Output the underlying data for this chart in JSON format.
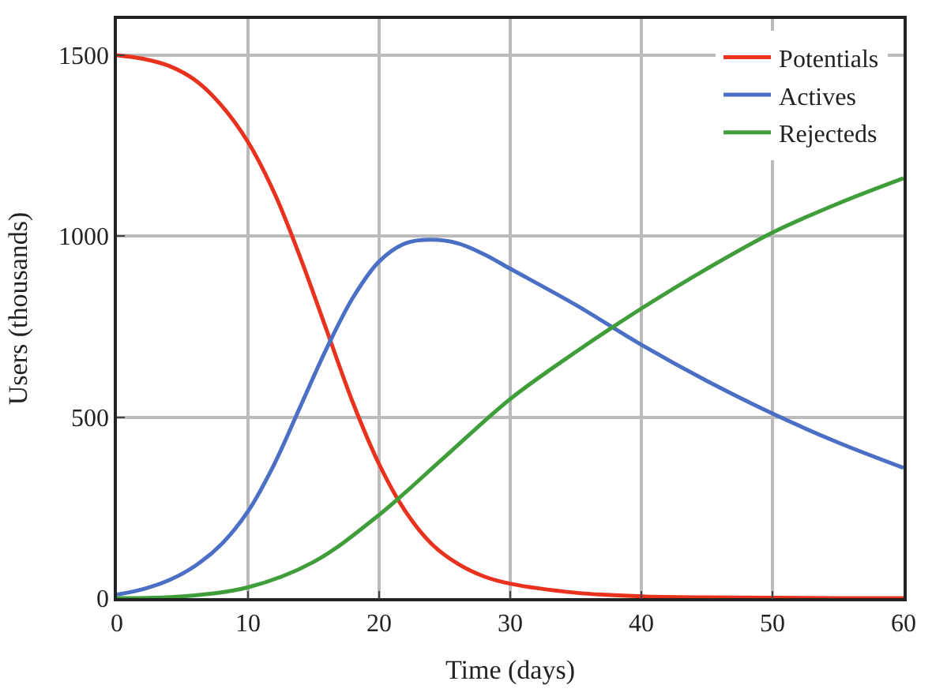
{
  "chart_data": {
    "type": "line",
    "xlabel": "Time (days)",
    "ylabel": "Users (thousands)",
    "xlim": [
      0,
      60
    ],
    "xticks": [
      0,
      10,
      20,
      30,
      40,
      50,
      60
    ],
    "ylim": [
      0,
      1600
    ],
    "yticks": [
      0,
      500,
      1000,
      1500
    ],
    "grid": true,
    "legend": "top right",
    "marker": "none",
    "line_style": "solid",
    "series": [
      {
        "name": "Potentials",
        "color": "#e8321e",
        "x": [
          0,
          2,
          4,
          6,
          8,
          10,
          12,
          14,
          16,
          18,
          20,
          22,
          24,
          26,
          28,
          30,
          35,
          40,
          45,
          50,
          55,
          60
        ],
        "values": [
          1500,
          1490,
          1470,
          1430,
          1360,
          1260,
          1120,
          940,
          740,
          540,
          370,
          240,
          150,
          95,
          60,
          40,
          15,
          5,
          2,
          1,
          0,
          0
        ]
      },
      {
        "name": "Actives",
        "color": "#4a6fc4",
        "x": [
          0,
          2,
          4,
          6,
          8,
          10,
          12,
          14,
          16,
          18,
          20,
          22,
          24,
          26,
          28,
          30,
          35,
          40,
          45,
          50,
          55,
          60
        ],
        "values": [
          10,
          25,
          50,
          90,
          150,
          240,
          370,
          530,
          690,
          830,
          930,
          980,
          990,
          980,
          950,
          910,
          810,
          700,
          600,
          510,
          430,
          360
        ]
      },
      {
        "name": "Rejecteds",
        "color": "#3f9e3a",
        "x": [
          0,
          5,
          10,
          15,
          20,
          25,
          30,
          35,
          40,
          45,
          50,
          55,
          60
        ],
        "values": [
          0,
          5,
          30,
          100,
          230,
          390,
          550,
          680,
          800,
          910,
          1010,
          1090,
          1160
        ]
      }
    ]
  }
}
